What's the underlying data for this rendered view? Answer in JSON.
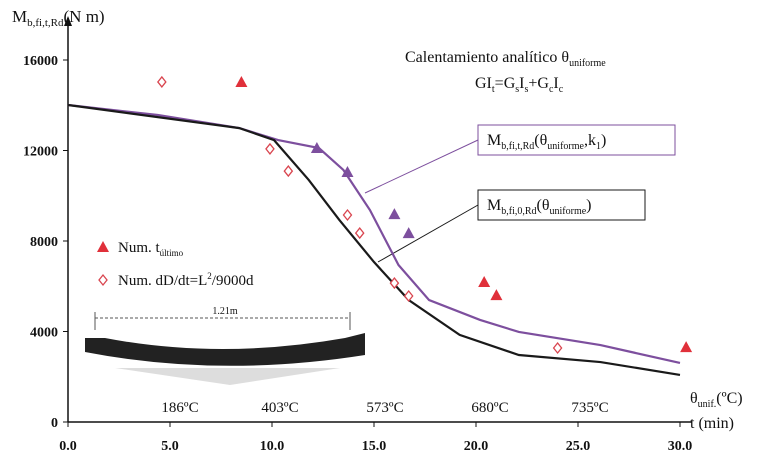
{
  "chart_data": {
    "type": "line",
    "y_label": [
      {
        "text": "M"
      },
      {
        "text": "b,fi,t,Rd",
        "sub": true
      },
      {
        "text": "(N m)"
      }
    ],
    "x_label_temp": [
      {
        "text": "θ"
      },
      {
        "text": "unif.",
        "sub": true
      },
      {
        "text": "(ºC)"
      }
    ],
    "x_label": "t (min)",
    "annotation_1": [
      {
        "text": "Calentamiento analítico θ"
      },
      {
        "text": "uniforme",
        "sub": true
      }
    ],
    "annotation_2": [
      {
        "text": "GI"
      },
      {
        "text": "t",
        "sub": true
      },
      {
        "text": "=G"
      },
      {
        "text": "s",
        "sub": true
      },
      {
        "text": "I"
      },
      {
        "text": "s",
        "sub": true
      },
      {
        "text": "+G"
      },
      {
        "text": "c",
        "sub": true
      },
      {
        "text": "I"
      },
      {
        "text": "c",
        "sub": true
      }
    ],
    "temperature_labels": [
      "186ºC",
      "403ºC",
      "573ºC",
      "680ºC",
      "735ºC"
    ],
    "beam_label": "1.21m",
    "xlim": [
      0,
      30
    ],
    "ylim": [
      0,
      16000
    ],
    "xticks": [
      {
        "value": 0,
        "label": "0.0"
      },
      {
        "value": 5,
        "label": "5.0"
      },
      {
        "value": 10,
        "label": "10.0"
      },
      {
        "value": 15,
        "label": "15.0"
      },
      {
        "value": 20,
        "label": "20.0"
      },
      {
        "value": 25,
        "label": "25.0"
      },
      {
        "value": 30,
        "label": "30.0"
      }
    ],
    "yticks": [
      0,
      4000,
      8000,
      12000,
      16000
    ],
    "series": [
      {
        "name": [
          {
            "text": "M"
          },
          {
            "text": "b,fi,t,Rd",
            "sub": true
          },
          {
            "text": "(θ"
          },
          {
            "text": "uniforme",
            "sub": true
          },
          {
            "text": ",k"
          },
          {
            "text": "1",
            "sub": true
          },
          {
            "text": ")"
          }
        ],
        "kind": "line",
        "color": "#7d4f9e",
        "x": [
          0,
          4.4,
          8.4,
          10.3,
          12.3,
          13.5,
          14.8,
          16.2,
          17.7,
          20.2,
          22.1,
          26.1,
          30
        ],
        "values": [
          14010,
          13570,
          12990,
          12460,
          12110,
          11140,
          9370,
          6940,
          5390,
          4510,
          3980,
          3400,
          2610
        ]
      },
      {
        "name": [
          {
            "text": "M"
          },
          {
            "text": "b,fi,0,Rd",
            "sub": true
          },
          {
            "text": "(θ"
          },
          {
            "text": "uniforme",
            "sub": true
          },
          {
            "text": ")"
          }
        ],
        "kind": "line",
        "color": "#1a1a1a",
        "x": [
          0,
          8.4,
          10.1,
          11.8,
          13.3,
          15.0,
          16.7,
          19.2,
          22.1,
          26.1,
          30
        ],
        "values": [
          14010,
          12990,
          12460,
          10700,
          8930,
          7070,
          5390,
          3850,
          2960,
          2650,
          2080
        ]
      },
      {
        "name": [
          {
            "text": "Num. t"
          },
          {
            "text": "último",
            "sub": true
          }
        ],
        "kind": "triangle",
        "color": "#e0303a",
        "colors": [
          "#e0303a",
          "#7d4f9e",
          "#7d4f9e",
          "#7d4f9e",
          "#7d4f9e",
          "#e0303a",
          "#e0303a",
          "#e0303a"
        ],
        "x": [
          8.5,
          12.2,
          13.7,
          16.0,
          16.7,
          20.4,
          21.0,
          30.3
        ],
        "values": [
          15030,
          12110,
          11050,
          9190,
          8350,
          6190,
          5610,
          3310
        ]
      },
      {
        "name": [
          {
            "text": "Num. dD/dt=L"
          },
          {
            "text": "2",
            "sup": true
          },
          {
            "text": "/9000d"
          }
        ],
        "kind": "diamond",
        "color": "#d9454f",
        "x": [
          4.6,
          9.9,
          10.8,
          13.7,
          14.3,
          16.0,
          16.7,
          24.0
        ],
        "values": [
          15030,
          12070,
          11090,
          9150,
          8350,
          6140,
          5570,
          3270
        ]
      }
    ]
  }
}
